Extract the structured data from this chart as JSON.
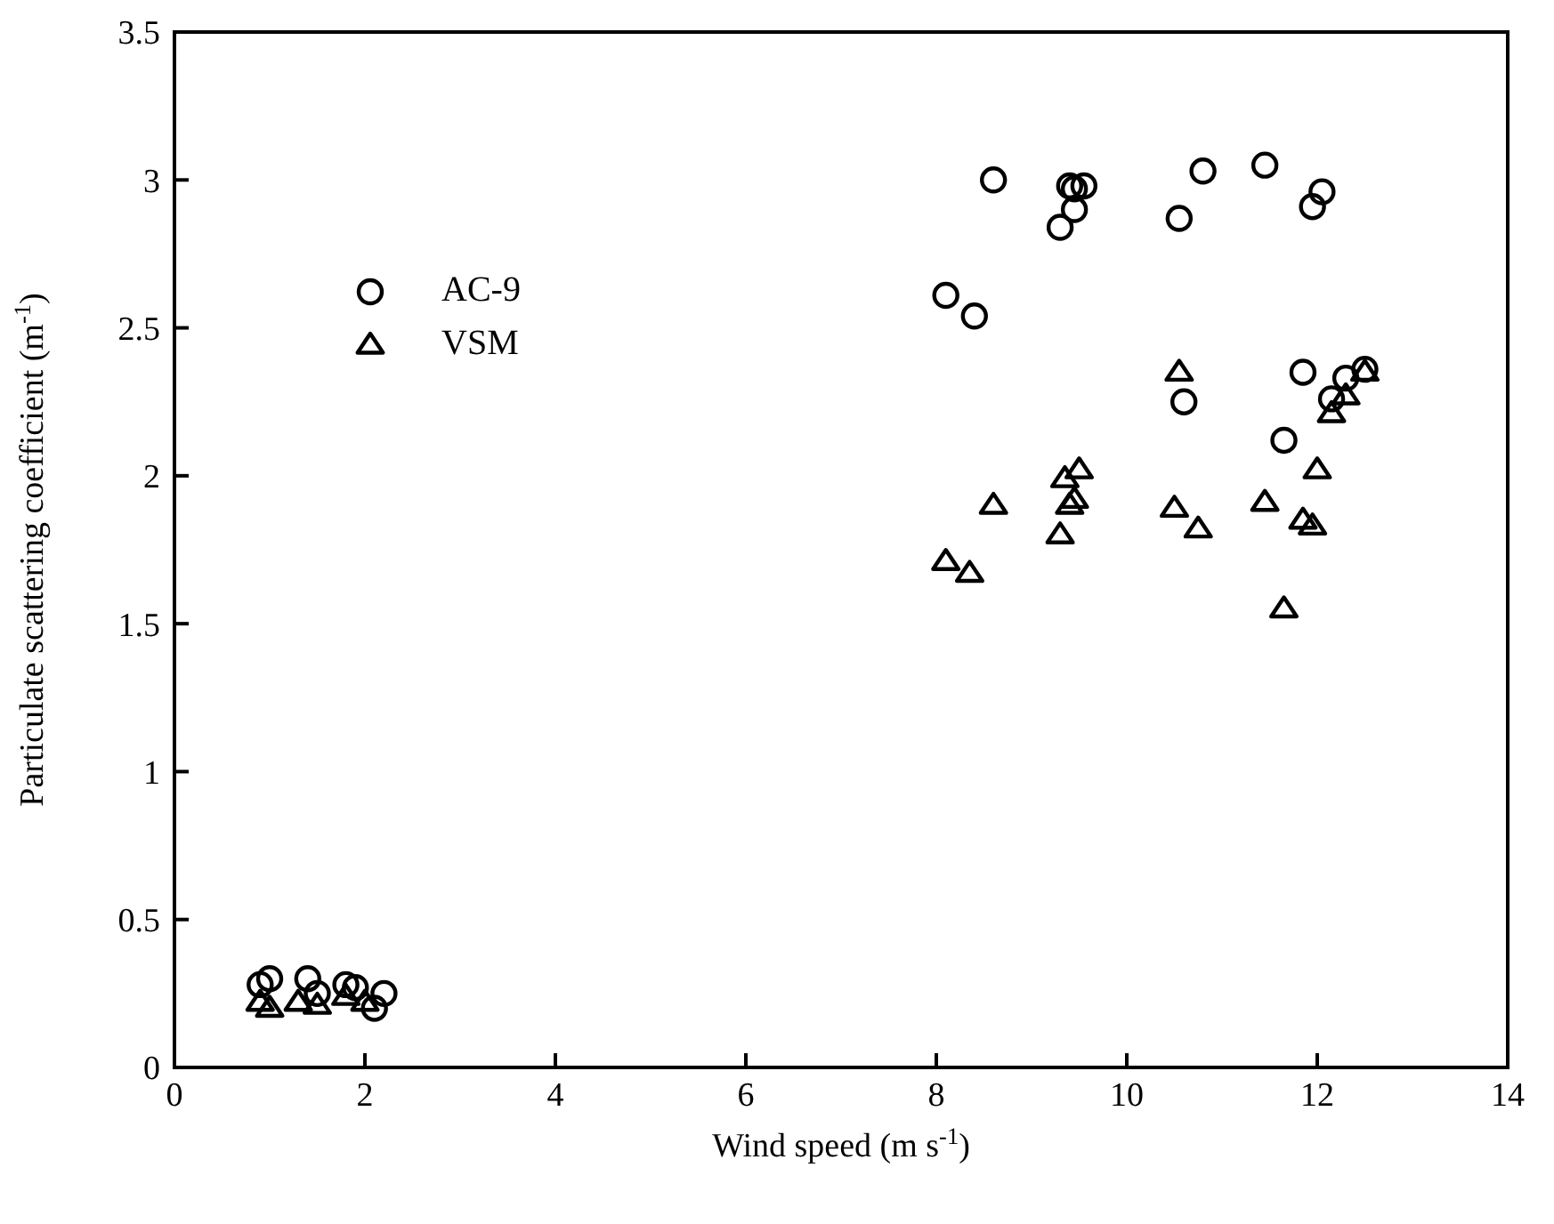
{
  "chart_data": {
    "type": "scatter",
    "xlabel": "Wind speed (m s$^{-1}$)",
    "ylabel": "Particulate scattering coefficient (m$^{-1}$)",
    "xlim": [
      0,
      14
    ],
    "xticks": [
      0,
      2,
      4,
      6,
      8,
      10,
      12,
      14
    ],
    "ylim": [
      0,
      3.5
    ],
    "yticks": [
      0,
      0.5,
      1,
      1.5,
      2,
      2.5,
      3,
      3.5
    ],
    "grid": false,
    "legend": "top left",
    "series": [
      {
        "name": "AC-9",
        "color": "#000000",
        "marker": "circle",
        "x": [
          8.6,
          9.4,
          9.45,
          9.55,
          9.45,
          9.3,
          10.8,
          10.55,
          11.45,
          12.05,
          11.95,
          8.1,
          8.4,
          10.6,
          11.85,
          11.65,
          12.15,
          12.3,
          12.5,
          0.9,
          1.0,
          1.4,
          1.8,
          1.9,
          2.2,
          2.1,
          1.5
        ],
        "values": [
          3.0,
          2.98,
          2.97,
          2.98,
          2.9,
          2.84,
          3.03,
          2.87,
          3.05,
          2.96,
          2.91,
          2.61,
          2.54,
          2.25,
          2.35,
          2.12,
          2.26,
          2.33,
          2.36,
          0.28,
          0.3,
          0.3,
          0.28,
          0.27,
          0.25,
          0.2,
          0.25
        ]
      },
      {
        "name": "VSM",
        "color": "#000000",
        "marker": "triangle",
        "x": [
          8.1,
          8.35,
          8.6,
          9.3,
          9.35,
          9.4,
          9.45,
          9.5,
          10.55,
          10.5,
          10.75,
          11.45,
          11.65,
          11.85,
          11.95,
          12.0,
          12.15,
          12.3,
          12.5,
          0.9,
          1.0,
          1.5,
          1.3,
          2.0,
          1.8
        ],
        "values": [
          1.71,
          1.67,
          1.9,
          1.8,
          1.99,
          1.9,
          1.92,
          2.02,
          2.35,
          1.89,
          1.82,
          1.91,
          1.55,
          1.85,
          1.83,
          2.02,
          2.21,
          2.27,
          2.35,
          0.22,
          0.2,
          0.21,
          0.22,
          0.22,
          0.24
        ]
      }
    ]
  }
}
